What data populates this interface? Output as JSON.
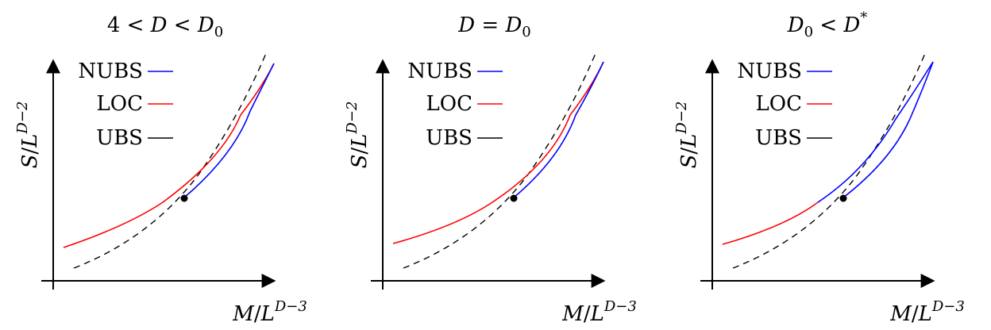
{
  "panels": [
    {
      "title": {
        "pre": "4 < ",
        "v1": "D",
        "mid": " < ",
        "v2": "D",
        "sub2": "0",
        "post": ""
      },
      "legend": [
        "NUBS",
        "LOC",
        "UBS"
      ]
    },
    {
      "title": {
        "pre": "",
        "v1": "D",
        "mid": " = ",
        "v2": "D",
        "sub2": "0",
        "post": ""
      },
      "legend": [
        "NUBS",
        "LOC",
        "UBS"
      ]
    },
    {
      "title": {
        "pre": "",
        "v1": "D",
        "sub1": "0",
        "mid": " < ",
        "v2": "D",
        "sup2": "*",
        "post": ""
      },
      "legend": [
        "NUBS",
        "LOC",
        "UBS"
      ]
    }
  ],
  "axes": {
    "y_label": {
      "a": "S",
      "b": "/",
      "c": "L",
      "exp": "D−2"
    },
    "x_label": {
      "a": "M",
      "b": "/",
      "c": "L",
      "exp": "D−3"
    }
  },
  "colors": {
    "nubs": "#0000ff",
    "loc": "#ff0000",
    "ubs": "#000000"
  }
}
